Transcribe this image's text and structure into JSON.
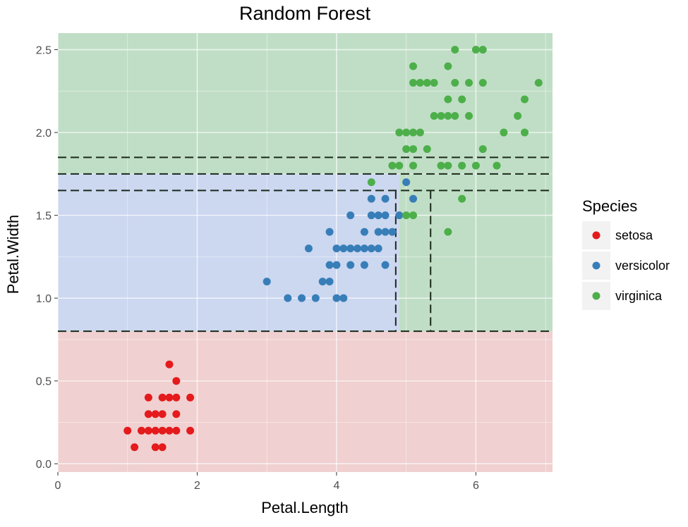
{
  "chart_data": {
    "type": "scatter",
    "title": "Random Forest",
    "xlabel": "Petal.Length",
    "ylabel": "Petal.Width",
    "xlim": [
      0,
      7.1
    ],
    "ylim": [
      -0.05,
      2.6
    ],
    "x_ticks": [
      0,
      2,
      4,
      6
    ],
    "y_ticks": [
      0.0,
      0.5,
      1.0,
      1.5,
      2.0,
      2.5
    ],
    "x_tick_labels": [
      "0",
      "2",
      "4",
      "6"
    ],
    "y_tick_labels": [
      "0.0",
      "0.5",
      "1.0",
      "1.5",
      "2.0",
      "2.5"
    ],
    "grid": true,
    "legend": {
      "title": "Species",
      "placement": "right",
      "entries": [
        "setosa",
        "versicolor",
        "virginica"
      ]
    },
    "colors": {
      "setosa": "#e41a1c",
      "versicolor": "#377eb8",
      "virginica": "#4daf4a",
      "region_setosa": "#f0d0d0",
      "region_versicolor": "#ccd7f0",
      "region_virginica": "#c0dec6",
      "boundary": "#1a2a1a"
    },
    "decision_regions": [
      {
        "species": "setosa",
        "x": [
          0,
          7.1
        ],
        "y": [
          -0.05,
          0.8
        ]
      },
      {
        "species": "versicolor",
        "x": [
          0,
          4.9
        ],
        "y": [
          0.8,
          1.75
        ]
      },
      {
        "species": "virginica",
        "x": [
          4.9,
          7.1
        ],
        "y": [
          0.8,
          1.75
        ]
      },
      {
        "species": "virginica",
        "x": [
          0,
          7.1
        ],
        "y": [
          1.75,
          2.6
        ]
      }
    ],
    "split_lines": [
      {
        "orientation": "h",
        "y": 0.8,
        "x": [
          0,
          7.1
        ]
      },
      {
        "orientation": "h",
        "y": 1.65,
        "x": [
          0,
          7.1
        ]
      },
      {
        "orientation": "h",
        "y": 1.75,
        "x": [
          0,
          7.1
        ]
      },
      {
        "orientation": "h",
        "y": 1.85,
        "x": [
          0,
          7.1
        ]
      },
      {
        "orientation": "v",
        "x": 4.85,
        "y": [
          0.8,
          1.65
        ]
      },
      {
        "orientation": "v",
        "x": 5.35,
        "y": [
          0.8,
          1.65
        ]
      }
    ],
    "series": [
      {
        "name": "setosa",
        "points": [
          [
            1.0,
            0.2
          ],
          [
            1.1,
            0.1
          ],
          [
            1.2,
            0.2
          ],
          [
            1.3,
            0.2
          ],
          [
            1.3,
            0.3
          ],
          [
            1.3,
            0.4
          ],
          [
            1.4,
            0.1
          ],
          [
            1.4,
            0.2
          ],
          [
            1.4,
            0.3
          ],
          [
            1.5,
            0.1
          ],
          [
            1.5,
            0.2
          ],
          [
            1.5,
            0.3
          ],
          [
            1.5,
            0.4
          ],
          [
            1.6,
            0.2
          ],
          [
            1.6,
            0.4
          ],
          [
            1.6,
            0.6
          ],
          [
            1.7,
            0.2
          ],
          [
            1.7,
            0.3
          ],
          [
            1.7,
            0.4
          ],
          [
            1.7,
            0.5
          ],
          [
            1.9,
            0.2
          ],
          [
            1.9,
            0.4
          ]
        ]
      },
      {
        "name": "versicolor",
        "points": [
          [
            3.0,
            1.1
          ],
          [
            3.3,
            1.0
          ],
          [
            3.5,
            1.0
          ],
          [
            3.6,
            1.3
          ],
          [
            3.7,
            1.0
          ],
          [
            3.8,
            1.1
          ],
          [
            3.9,
            1.1
          ],
          [
            3.9,
            1.2
          ],
          [
            3.9,
            1.4
          ],
          [
            4.0,
            1.0
          ],
          [
            4.0,
            1.2
          ],
          [
            4.0,
            1.3
          ],
          [
            4.1,
            1.0
          ],
          [
            4.1,
            1.3
          ],
          [
            4.2,
            1.2
          ],
          [
            4.2,
            1.3
          ],
          [
            4.2,
            1.5
          ],
          [
            4.3,
            1.3
          ],
          [
            4.4,
            1.2
          ],
          [
            4.4,
            1.3
          ],
          [
            4.4,
            1.4
          ],
          [
            4.5,
            1.3
          ],
          [
            4.5,
            1.5
          ],
          [
            4.5,
            1.6
          ],
          [
            4.6,
            1.3
          ],
          [
            4.6,
            1.4
          ],
          [
            4.6,
            1.5
          ],
          [
            4.7,
            1.2
          ],
          [
            4.7,
            1.4
          ],
          [
            4.7,
            1.5
          ],
          [
            4.7,
            1.6
          ],
          [
            4.8,
            1.4
          ],
          [
            4.9,
            1.5
          ],
          [
            5.0,
            1.7
          ],
          [
            5.1,
            1.6
          ]
        ]
      },
      {
        "name": "virginica",
        "points": [
          [
            4.5,
            1.7
          ],
          [
            4.8,
            1.8
          ],
          [
            4.9,
            1.8
          ],
          [
            4.9,
            2.0
          ],
          [
            5.0,
            1.5
          ],
          [
            5.0,
            2.0
          ],
          [
            5.0,
            1.9
          ],
          [
            5.1,
            1.5
          ],
          [
            5.1,
            1.8
          ],
          [
            5.1,
            1.9
          ],
          [
            5.1,
            2.0
          ],
          [
            5.1,
            2.3
          ],
          [
            5.1,
            2.4
          ],
          [
            5.2,
            2.0
          ],
          [
            5.2,
            2.3
          ],
          [
            5.3,
            1.9
          ],
          [
            5.3,
            2.3
          ],
          [
            5.4,
            2.1
          ],
          [
            5.4,
            2.3
          ],
          [
            5.5,
            1.8
          ],
          [
            5.5,
            2.1
          ],
          [
            5.6,
            1.4
          ],
          [
            5.6,
            1.8
          ],
          [
            5.6,
            2.1
          ],
          [
            5.6,
            2.2
          ],
          [
            5.6,
            2.4
          ],
          [
            5.7,
            2.1
          ],
          [
            5.7,
            2.3
          ],
          [
            5.7,
            2.5
          ],
          [
            5.8,
            1.6
          ],
          [
            5.8,
            1.8
          ],
          [
            5.8,
            2.2
          ],
          [
            5.9,
            2.1
          ],
          [
            5.9,
            2.3
          ],
          [
            6.0,
            1.8
          ],
          [
            6.0,
            2.5
          ],
          [
            6.1,
            1.9
          ],
          [
            6.1,
            2.3
          ],
          [
            6.1,
            2.5
          ],
          [
            6.3,
            1.8
          ],
          [
            6.4,
            2.0
          ],
          [
            6.6,
            2.1
          ],
          [
            6.7,
            2.0
          ],
          [
            6.7,
            2.2
          ],
          [
            6.9,
            2.3
          ]
        ]
      }
    ]
  }
}
